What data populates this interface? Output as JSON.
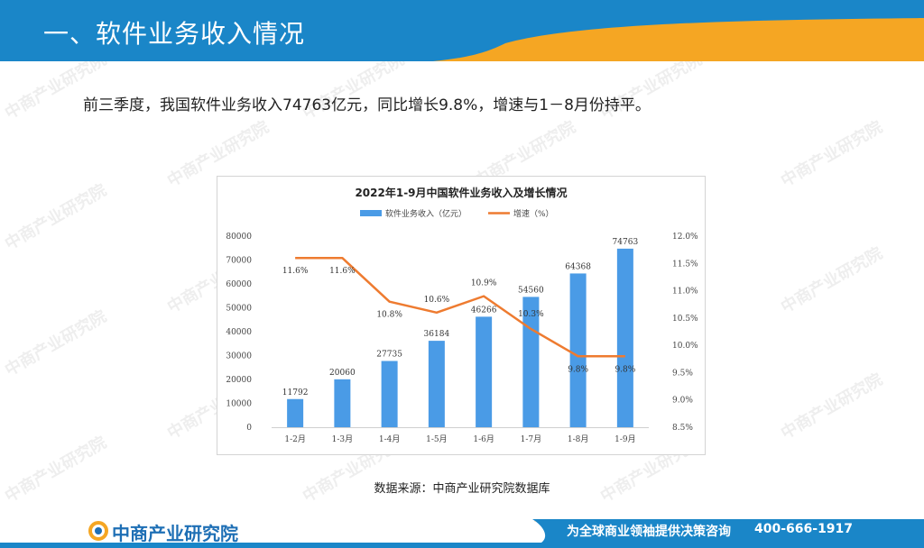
{
  "header": {
    "title": "一、软件业务收入情况"
  },
  "intro": {
    "text": "前三季度，我国软件业务收入74763亿元，同比增长9.8%，增速与1－8月份持平。"
  },
  "chart_data": {
    "type": "bar",
    "title": "2022年1-9月中国软件业务收入及增长情况",
    "categories": [
      "1-2月",
      "1-3月",
      "1-4月",
      "1-5月",
      "1-6月",
      "1-7月",
      "1-8月",
      "1-9月"
    ],
    "series": [
      {
        "name": "软件业务收入（亿元）",
        "type": "bar",
        "axis": "left",
        "color": "#4a9be6",
        "values": [
          11792,
          20060,
          27735,
          36184,
          46266,
          54560,
          64368,
          74763
        ],
        "labels": [
          "11792",
          "20060",
          "27735",
          "36184",
          "46266",
          "54560",
          "64368",
          "74763"
        ]
      },
      {
        "name": "增速（%）",
        "type": "line",
        "axis": "right",
        "color": "#ee7b30",
        "values": [
          11.6,
          11.6,
          10.8,
          10.6,
          10.9,
          10.3,
          9.8,
          9.8
        ],
        "labels": [
          "11.6%",
          "11.6%",
          "10.8%",
          "10.6%",
          "10.9%",
          "10.3%",
          "9.8%",
          "9.8%"
        ]
      }
    ],
    "y_left": {
      "ylim": [
        0,
        80000
      ],
      "ticks": [
        "0",
        "10000",
        "20000",
        "30000",
        "40000",
        "50000",
        "60000",
        "70000",
        "80000"
      ]
    },
    "y_right": {
      "ylim": [
        8.5,
        12.0
      ],
      "ticks": [
        "8.5%",
        "9.0%",
        "9.5%",
        "10.0%",
        "10.5%",
        "11.0%",
        "11.5%",
        "12.0%"
      ]
    },
    "legend": "top",
    "grid": false
  },
  "source": {
    "text": "数据来源：中商产业研究院数据库"
  },
  "footer": {
    "logo_text": "中商产业研究院",
    "slogan": "为全球商业领袖提供决策咨询",
    "phone": "400-666-1917"
  },
  "watermark": {
    "text": "中商产业研究院"
  },
  "colors": {
    "header_blue": "#1a86c8",
    "accent_orange": "#f5a623",
    "bar": "#4a9be6",
    "line": "#ee7b30"
  }
}
